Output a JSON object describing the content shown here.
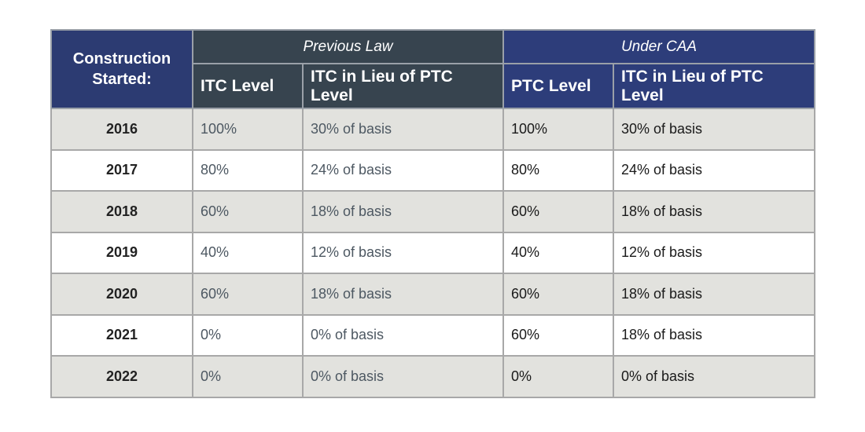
{
  "table": {
    "corner": "Construction Started:",
    "groups": [
      "Previous Law",
      "Under CAA"
    ],
    "columns": [
      "ITC Level",
      "ITC in Lieu of PTC Level",
      "PTC Level",
      "ITC in Lieu of PTC Level"
    ],
    "rows": [
      [
        "2016",
        "100%",
        "30% of basis",
        "100%",
        "30% of basis"
      ],
      [
        "2017",
        "80%",
        "24% of basis",
        "80%",
        "24% of basis"
      ],
      [
        "2018",
        "60%",
        "18% of basis",
        "60%",
        "18% of basis"
      ],
      [
        "2019",
        "40%",
        "12% of basis",
        "40%",
        "12% of basis"
      ],
      [
        "2020",
        "60%",
        "18% of basis",
        "60%",
        "18% of basis"
      ],
      [
        "2021",
        "0%",
        "0% of basis",
        "60%",
        "18% of basis"
      ],
      [
        "2022",
        "0%",
        "0% of basis",
        "0%",
        "0% of basis"
      ]
    ]
  }
}
